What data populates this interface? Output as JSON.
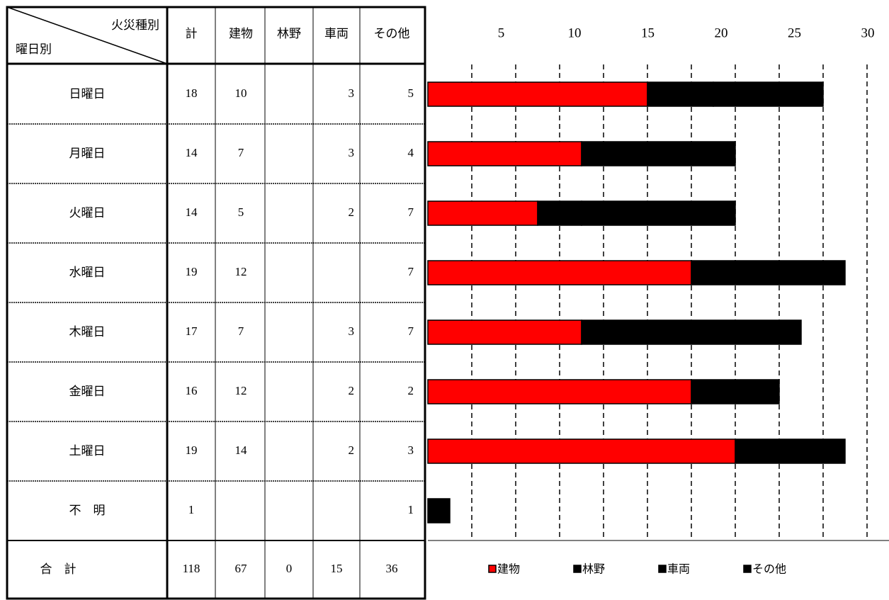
{
  "table": {
    "corner_top": "火災種別",
    "corner_bottom": "曜日別",
    "total_header": "計",
    "row_totals": [
      18,
      14,
      14,
      19,
      17,
      16,
      19,
      1
    ],
    "sum_label": "合　計",
    "sum_row": [
      118,
      67,
      0,
      15,
      36
    ]
  },
  "chart_data": {
    "type": "bar",
    "orientation": "horizontal",
    "stacked": true,
    "categories": [
      "日曜日",
      "月曜日",
      "火曜日",
      "水曜日",
      "木曜日",
      "金曜日",
      "土曜日",
      "不　明"
    ],
    "series": [
      {
        "name": "建物",
        "color": "#ff0000",
        "pattern": "solid",
        "values": [
          10,
          7,
          5,
          12,
          7,
          12,
          14,
          null
        ]
      },
      {
        "name": "林野",
        "color": "#ffffff",
        "pattern": "dots",
        "values": [
          null,
          null,
          null,
          null,
          null,
          null,
          null,
          null
        ]
      },
      {
        "name": "車両",
        "color": "#ccffff",
        "pattern": "dots",
        "values": [
          3,
          3,
          2,
          null,
          3,
          2,
          2,
          null
        ]
      },
      {
        "name": "その他",
        "color": "#33bbdd",
        "pattern": "hatch",
        "values": [
          5,
          4,
          7,
          7,
          7,
          2,
          3,
          1
        ]
      }
    ],
    "scale_labels": [
      5,
      10,
      15,
      20,
      25,
      30
    ],
    "xlim": [
      0,
      21
    ],
    "xticks": [
      2,
      4,
      6,
      8,
      10,
      12,
      14,
      16,
      18,
      20
    ],
    "grid": true
  }
}
